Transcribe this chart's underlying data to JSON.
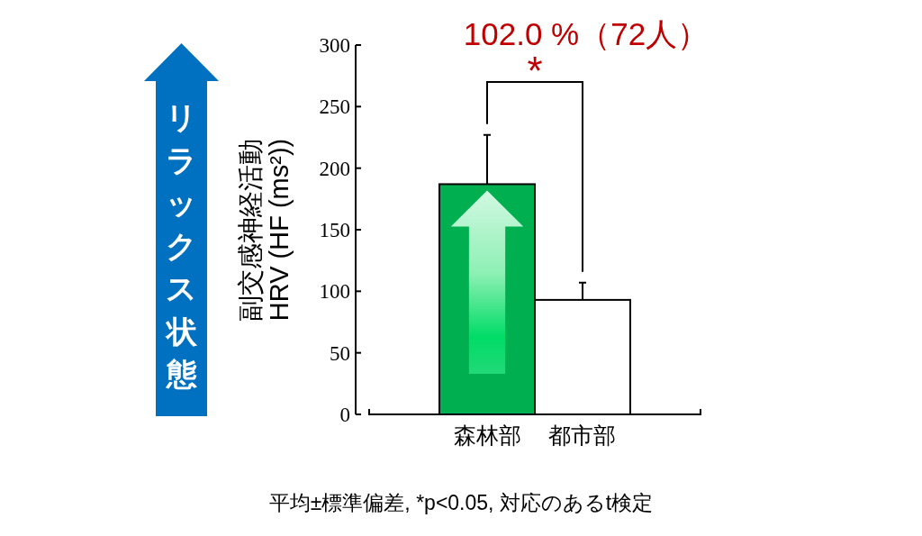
{
  "chart_data": {
    "type": "bar",
    "categories": [
      "森林部",
      "都市部"
    ],
    "values": [
      187,
      93
    ],
    "colors": [
      "#00b050",
      "#ffffff"
    ],
    "errors": [
      [
        187,
        227
      ],
      [
        93,
        107
      ]
    ],
    "ylim": [
      0,
      300
    ],
    "yticks": [
      0,
      50,
      100,
      150,
      200,
      250,
      300
    ],
    "ylabel": "副交感神経活動\nHRV (HF (ms²))",
    "annotations": [
      "リラックス状態",
      "102.0 %（72人）",
      "*",
      "平均±標準偏差, *p<0.05, 対応のあるt検定"
    ]
  }
}
